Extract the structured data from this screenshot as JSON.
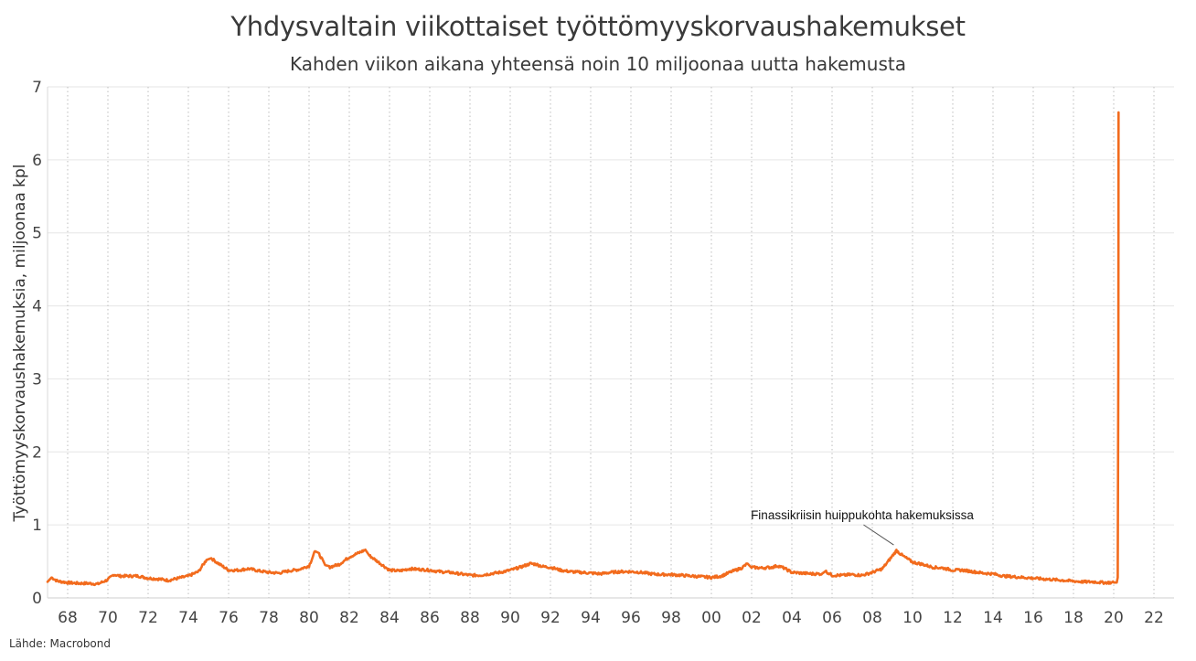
{
  "chart_data": {
    "type": "line",
    "title": "Yhdysvaltain viikottaiset työttömyyskorvaushakemukset",
    "subtitle": "Kahden viikon aikana yhteensä noin 10 miljoonaa uutta hakemusta",
    "ylabel": "Työttömyyskorvaushakemuksia, miljoonaa kpl",
    "xlabel": "",
    "source": "Lähde: Macrobond",
    "xlim": [
      1967,
      2023
    ],
    "ylim": [
      0,
      7
    ],
    "x_ticks": [
      1968,
      1970,
      1972,
      1974,
      1976,
      1978,
      1980,
      1982,
      1984,
      1986,
      1988,
      1990,
      1992,
      1994,
      1996,
      1998,
      2000,
      2002,
      2004,
      2006,
      2008,
      2010,
      2012,
      2014,
      2016,
      2018,
      2020,
      2022
    ],
    "x_tick_labels": [
      "68",
      "70",
      "72",
      "74",
      "76",
      "78",
      "80",
      "82",
      "84",
      "86",
      "88",
      "90",
      "92",
      "94",
      "96",
      "98",
      "00",
      "02",
      "04",
      "06",
      "08",
      "10",
      "12",
      "14",
      "16",
      "18",
      "20",
      "22"
    ],
    "y_ticks": [
      0,
      1,
      2,
      3,
      4,
      5,
      6,
      7
    ],
    "grid": true,
    "line_color": "#f26b1d",
    "series": [
      {
        "x": [
          1967.0,
          1967.2,
          1967.5,
          1968.0,
          1968.5,
          1969.0,
          1969.5,
          1970.0,
          1970.3,
          1970.6,
          1971.0,
          1971.5,
          1972.0,
          1972.5,
          1973.0,
          1973.5,
          1974.0,
          1974.5,
          1974.9,
          1975.1,
          1975.5,
          1976.0,
          1976.5,
          1977.0,
          1977.5,
          1978.0,
          1978.5,
          1979.0,
          1979.5,
          1980.0,
          1980.3,
          1980.5,
          1980.8,
          1981.0,
          1981.5,
          1982.0,
          1982.5,
          1982.8,
          1983.0,
          1983.5,
          1984.0,
          1984.5,
          1985.0,
          1985.5,
          1986.0,
          1986.5,
          1987.0,
          1987.5,
          1988.0,
          1988.5,
          1989.0,
          1989.5,
          1990.0,
          1990.5,
          1991.0,
          1991.3,
          1991.6,
          1992.0,
          1992.5,
          1993.0,
          1993.5,
          1994.0,
          1994.5,
          1995.0,
          1995.5,
          1996.0,
          1996.5,
          1997.0,
          1997.5,
          1998.0,
          1998.5,
          1999.0,
          1999.5,
          2000.0,
          2000.5,
          2001.0,
          2001.5,
          2001.8,
          2002.0,
          2002.5,
          2003.0,
          2003.3,
          2003.6,
          2004.0,
          2004.5,
          2005.0,
          2005.5,
          2005.7,
          2006.0,
          2006.5,
          2007.0,
          2007.5,
          2008.0,
          2008.5,
          2008.9,
          2009.2,
          2009.5,
          2010.0,
          2010.5,
          2011.0,
          2011.5,
          2012.0,
          2012.5,
          2013.0,
          2013.5,
          2014.0,
          2014.5,
          2015.0,
          2015.5,
          2016.0,
          2016.5,
          2017.0,
          2017.5,
          2018.0,
          2018.5,
          2019.0,
          2019.5,
          2020.0,
          2020.15,
          2020.2,
          2020.23,
          2020.24
        ],
        "values": [
          0.22,
          0.28,
          0.23,
          0.21,
          0.2,
          0.2,
          0.19,
          0.25,
          0.32,
          0.3,
          0.3,
          0.3,
          0.27,
          0.26,
          0.24,
          0.27,
          0.3,
          0.36,
          0.52,
          0.55,
          0.47,
          0.38,
          0.38,
          0.4,
          0.37,
          0.35,
          0.34,
          0.37,
          0.39,
          0.44,
          0.64,
          0.6,
          0.45,
          0.42,
          0.46,
          0.56,
          0.62,
          0.66,
          0.58,
          0.48,
          0.38,
          0.37,
          0.4,
          0.39,
          0.38,
          0.36,
          0.35,
          0.33,
          0.31,
          0.31,
          0.33,
          0.35,
          0.38,
          0.42,
          0.47,
          0.46,
          0.43,
          0.42,
          0.38,
          0.36,
          0.35,
          0.34,
          0.33,
          0.35,
          0.36,
          0.36,
          0.35,
          0.33,
          0.32,
          0.32,
          0.31,
          0.3,
          0.29,
          0.28,
          0.3,
          0.36,
          0.41,
          0.47,
          0.42,
          0.41,
          0.42,
          0.44,
          0.41,
          0.35,
          0.34,
          0.33,
          0.33,
          0.36,
          0.31,
          0.31,
          0.32,
          0.31,
          0.35,
          0.4,
          0.54,
          0.65,
          0.58,
          0.49,
          0.46,
          0.42,
          0.41,
          0.38,
          0.38,
          0.36,
          0.34,
          0.33,
          0.3,
          0.29,
          0.28,
          0.27,
          0.26,
          0.25,
          0.24,
          0.23,
          0.22,
          0.22,
          0.21,
          0.21,
          0.21,
          0.28,
          3.31,
          6.65
        ]
      }
    ],
    "annotations": [
      {
        "text": "Finassikriisin huippukohta hakemuksissa",
        "x": 2009.2,
        "y": 0.65
      }
    ]
  }
}
